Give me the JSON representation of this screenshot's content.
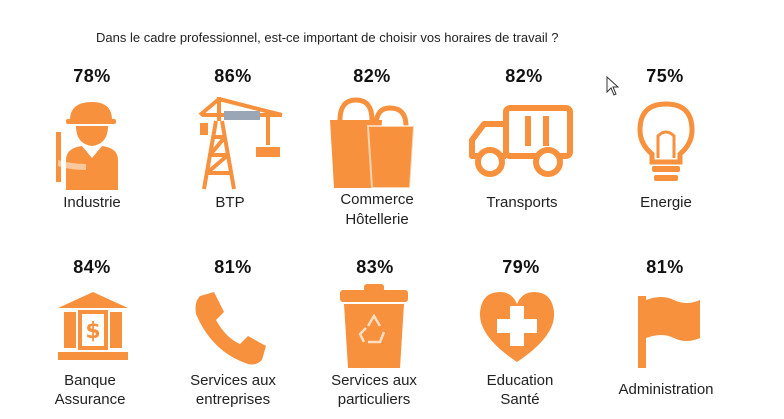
{
  "title": "Dans le cadre professionnel, est-ce important de choisir vos horaires de travail ?",
  "colors": {
    "icon": "#F7913D",
    "icon_light": "#ffffff",
    "text": "#222222"
  },
  "chart_data": {
    "type": "table",
    "title": "Dans le cadre professionnel, est-ce important de choisir vos horaires de travail ?",
    "unit": "%",
    "categories": [
      "Industrie",
      "BTP",
      "Commerce Hôtellerie",
      "Transports",
      "Energie",
      "Banque Assurance",
      "Services aux entreprises",
      "Services aux particuliers",
      "Education Santé",
      "Administration"
    ],
    "values": [
      78,
      86,
      82,
      82,
      75,
      84,
      81,
      83,
      79,
      81
    ]
  },
  "items": [
    {
      "pct": "78%",
      "label_1": "Industrie",
      "label_2": "",
      "icon": "worker-icon"
    },
    {
      "pct": "86%",
      "label_1": "BTP",
      "label_2": "",
      "icon": "crane-icon"
    },
    {
      "pct": "82%",
      "label_1": "Commerce",
      "label_2": "Hôtellerie",
      "icon": "shopping-bags-icon"
    },
    {
      "pct": "82%",
      "label_1": "Transports",
      "label_2": "",
      "icon": "truck-icon"
    },
    {
      "pct": "75%",
      "label_1": "Energie",
      "label_2": "",
      "icon": "lightbulb-icon"
    },
    {
      "pct": "84%",
      "label_1": "Banque",
      "label_2": "Assurance",
      "icon": "bank-icon"
    },
    {
      "pct": "81%",
      "label_1": "Services aux",
      "label_2": "entreprises",
      "icon": "phone-icon"
    },
    {
      "pct": "83%",
      "label_1": "Services aux",
      "label_2": "particuliers",
      "icon": "recycle-bin-icon"
    },
    {
      "pct": "79%",
      "label_1": "Education",
      "label_2": "Santé",
      "icon": "health-heart-icon"
    },
    {
      "pct": "81%",
      "label_1": "Administration",
      "label_2": "",
      "icon": "flag-icon"
    }
  ]
}
